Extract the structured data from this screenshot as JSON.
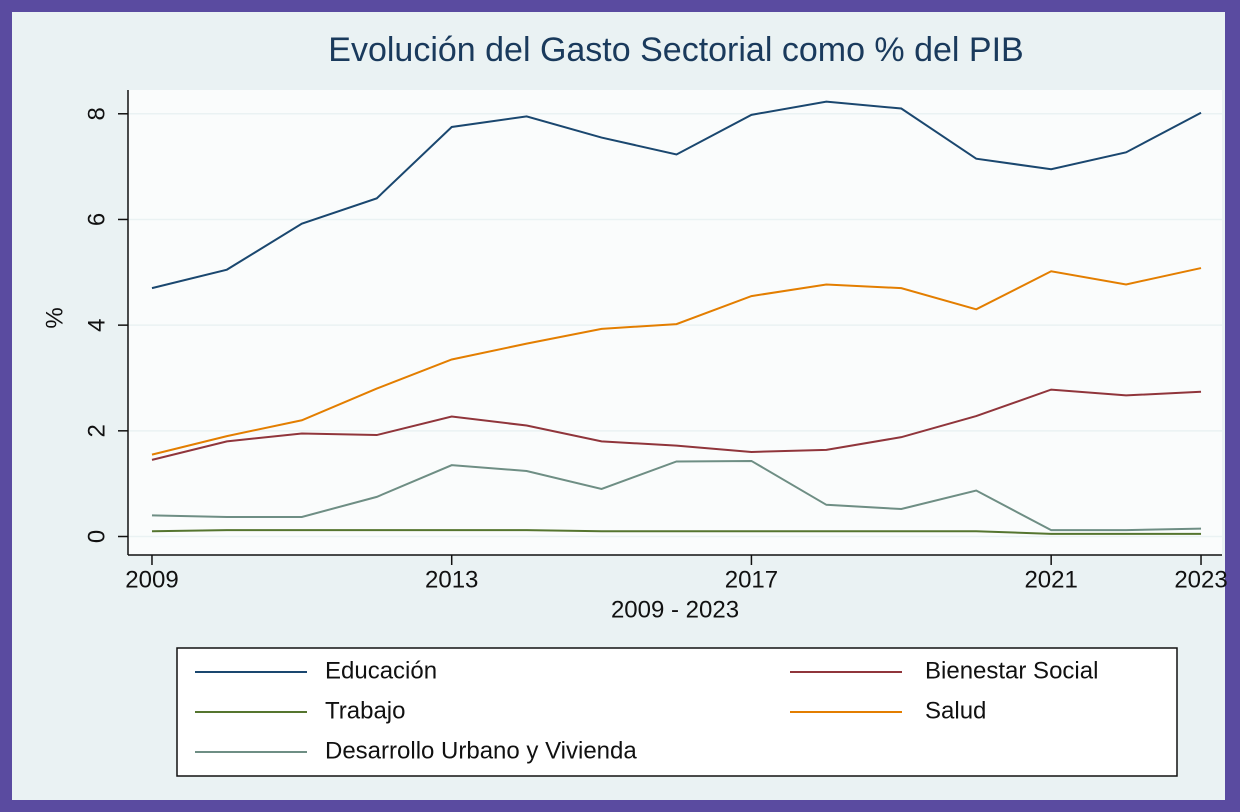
{
  "chart_data": {
    "type": "line",
    "title": "Evolución del Gasto Sectorial como % del PIB",
    "x_label": "2009 - 2023",
    "y_label": "%",
    "x": [
      2009,
      2010,
      2011,
      2012,
      2013,
      2014,
      2015,
      2016,
      2017,
      2018,
      2019,
      2020,
      2021,
      2022,
      2023
    ],
    "series": [
      {
        "name": "Educación",
        "color": "#1a476f",
        "values": [
          4.7,
          5.05,
          5.92,
          6.4,
          7.75,
          7.95,
          7.55,
          7.23,
          7.98,
          8.23,
          8.1,
          7.15,
          6.95,
          7.27,
          8.02
        ]
      },
      {
        "name": "Bienestar Social",
        "color": "#90353b",
        "values": [
          1.45,
          1.8,
          1.95,
          1.92,
          2.27,
          2.1,
          1.8,
          1.72,
          1.6,
          1.64,
          1.88,
          2.28,
          2.78,
          2.67,
          2.74
        ]
      },
      {
        "name": "Trabajo",
        "color": "#55752f",
        "values": [
          0.1,
          0.12,
          0.12,
          0.12,
          0.12,
          0.12,
          0.1,
          0.1,
          0.1,
          0.1,
          0.1,
          0.1,
          0.05,
          0.05,
          0.05
        ]
      },
      {
        "name": "Salud",
        "color": "#e37e00",
        "values": [
          1.55,
          1.9,
          2.2,
          2.8,
          3.35,
          3.65,
          3.93,
          4.02,
          4.55,
          4.77,
          4.7,
          4.3,
          5.02,
          4.77,
          5.08
        ]
      },
      {
        "name": "Desarrollo Urbano y Vivienda",
        "color": "#6e8e84",
        "values": [
          0.4,
          0.37,
          0.37,
          0.75,
          1.35,
          1.24,
          0.9,
          1.42,
          1.43,
          0.6,
          0.52,
          0.87,
          0.12,
          0.12,
          0.15
        ]
      }
    ],
    "xlim": [
      2008.68,
      2023.28
    ],
    "xticks": [
      2009,
      2013,
      2017,
      2021,
      2023
    ],
    "ylim": [
      -0.35,
      8.45
    ],
    "yticks": [
      0,
      2,
      4,
      6,
      8
    ],
    "grid": true,
    "legend": "bottom"
  }
}
